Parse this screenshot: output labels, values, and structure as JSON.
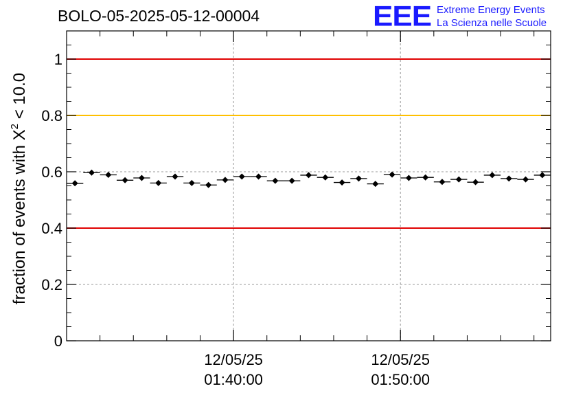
{
  "header": {
    "run_id": "BOLO-05-2025-05-12-00004"
  },
  "logo": {
    "mark": "EEE",
    "line1": "Extreme Energy Events",
    "line2": "La Scienza nelle Scuole",
    "color": "#1a1aff"
  },
  "chart_data": {
    "type": "scatter",
    "title": "BOLO-05-2025-05-12-00004",
    "ylabel_main": "fraction of events with X",
    "ylabel_sup": "2",
    "ylabel_tail": " < 10.0",
    "xlabel": "",
    "ylim": [
      0,
      1.1
    ],
    "yticks": [
      0,
      0.2,
      0.4,
      0.6,
      0.8,
      1
    ],
    "ytick_labels": [
      "0",
      "0.2",
      "0.4",
      "0.6",
      "0.8",
      "1"
    ],
    "x_unit": "minutes after 01:30:00",
    "xlim": [
      0,
      29
    ],
    "x_major_ticks": [
      10,
      20
    ],
    "x_major_labels": [
      [
        "12/05/25",
        "01:40:00"
      ],
      [
        "12/05/25",
        "01:50:00"
      ]
    ],
    "x_minor_step": 2,
    "grid": true,
    "reference_lines": [
      {
        "y": 1.0,
        "color": "#e00000"
      },
      {
        "y": 0.8,
        "color": "#ffc000"
      },
      {
        "y": 0.4,
        "color": "#e00000"
      }
    ],
    "bin_width": 1,
    "series": [
      {
        "marker_color": "#000000",
        "x": [
          0.5,
          1.5,
          2.5,
          3.5,
          4.5,
          5.5,
          6.5,
          7.5,
          8.5,
          9.5,
          10.5,
          11.5,
          12.5,
          13.5,
          14.5,
          15.5,
          16.5,
          17.5,
          18.5,
          19.5,
          20.5,
          21.5,
          22.5,
          23.5,
          24.5,
          25.5,
          26.5,
          27.5,
          28.5
        ],
        "y": [
          0.559,
          0.597,
          0.589,
          0.57,
          0.578,
          0.56,
          0.583,
          0.56,
          0.553,
          0.571,
          0.583,
          0.583,
          0.568,
          0.568,
          0.588,
          0.58,
          0.562,
          0.576,
          0.557,
          0.59,
          0.578,
          0.58,
          0.564,
          0.573,
          0.563,
          0.588,
          0.576,
          0.573,
          0.588
        ],
        "err": [
          0.008,
          0.008,
          0.008,
          0.008,
          0.008,
          0.008,
          0.008,
          0.008,
          0.008,
          0.008,
          0.008,
          0.008,
          0.008,
          0.008,
          0.008,
          0.008,
          0.008,
          0.008,
          0.008,
          0.008,
          0.008,
          0.008,
          0.008,
          0.008,
          0.008,
          0.008,
          0.008,
          0.008,
          0.008
        ]
      }
    ]
  }
}
